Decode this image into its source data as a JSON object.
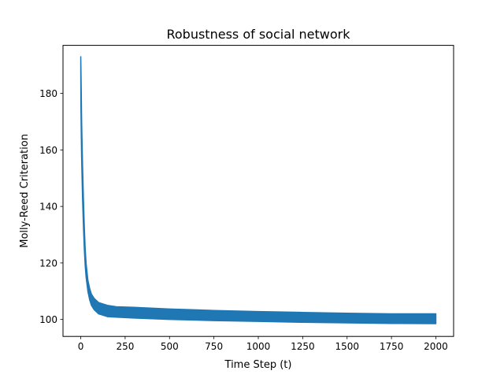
{
  "chart_data": {
    "type": "line",
    "title": "Robustness of social network",
    "xlabel": "Time Step (t)",
    "ylabel": "Molly-Reed Criteration",
    "xlim": [
      -100,
      2100
    ],
    "ylim": [
      94,
      197
    ],
    "xticks": [
      0,
      250,
      500,
      750,
      1000,
      1250,
      1500,
      1750,
      2000
    ],
    "yticks": [
      100,
      120,
      140,
      160,
      180
    ],
    "series": [
      {
        "color": "#1f77b4",
        "upper": {
          "x": [
            0,
            1,
            3,
            5,
            10,
            15,
            20,
            25,
            30,
            40,
            50,
            60,
            75,
            100,
            150,
            200,
            300,
            500,
            750,
            1000,
            1250,
            1500,
            1750,
            2000
          ],
          "y": [
            193,
            189,
            180,
            170,
            155,
            143,
            133,
            125,
            120,
            114,
            111,
            109,
            107.5,
            106,
            105,
            104.5,
            104.3,
            103.7,
            103.2,
            102.8,
            102.5,
            102.2,
            102.0,
            102.0
          ]
        },
        "lower": {
          "x": [
            0,
            1,
            3,
            5,
            10,
            15,
            20,
            25,
            30,
            40,
            50,
            60,
            75,
            100,
            150,
            200,
            300,
            500,
            750,
            1000,
            1250,
            1500,
            1750,
            2000
          ],
          "y": [
            188,
            175,
            165,
            157,
            143,
            133,
            125,
            119,
            115,
            110,
            107,
            105,
            103.5,
            102,
            101,
            100.8,
            100.5,
            100,
            99.6,
            99.3,
            99.0,
            98.8,
            98.6,
            98.5
          ]
        }
      }
    ],
    "grid": false,
    "legend": "none"
  }
}
